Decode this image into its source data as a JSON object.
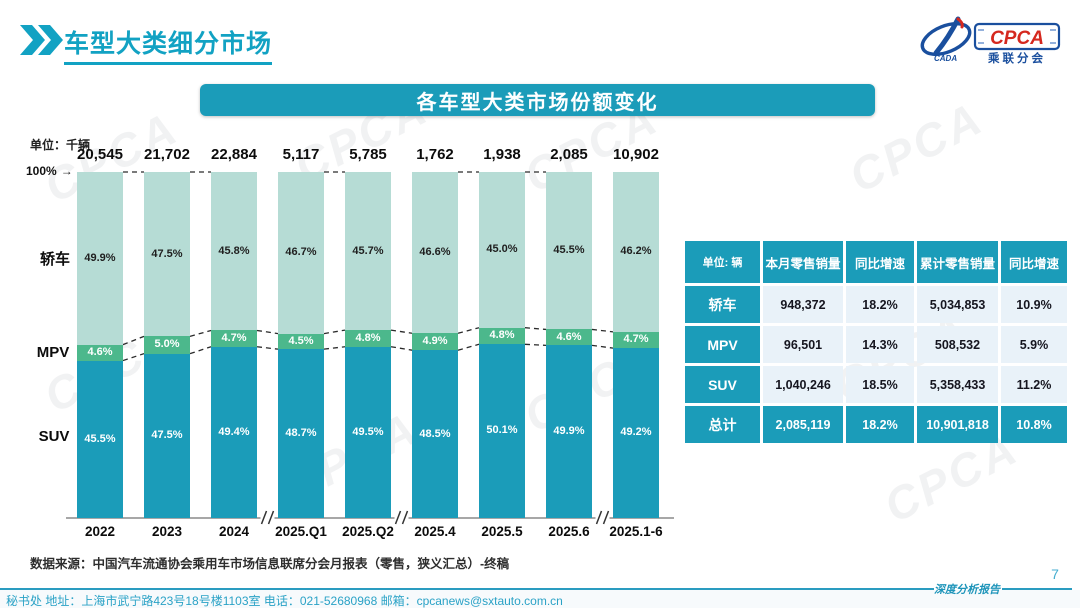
{
  "page": {
    "title": "车型大类细分市场",
    "page_number": "7",
    "footer_caption": "深度分析报告",
    "footer_address": "秘书处  地址：上海市武宁路423号18号楼1103室  电话：021-52680968   邮箱：cpcanews@sxtauto.com.cn",
    "data_source": "数据来源：中国汽车流通协会乘用车市场信息联席分会月报表（零售，狭义汇总）-终稿",
    "watermark_text": "CPCA"
  },
  "logo": {
    "cpca": "CPCA",
    "sub": "乘联分会",
    "cada": "CADA"
  },
  "colors": {
    "accent_teal": "#1b9cb9",
    "title_teal": "#12a2c3",
    "logo_blue": "#1a4f9e",
    "logo_red": "#d5281e"
  },
  "chart": {
    "banner_title": "各车型大类市场份额变化",
    "unit_label": "单位：千辆",
    "pct_100_label": "100%",
    "arrow": "→"
  },
  "chart_data": {
    "type": "bar",
    "stacked": true,
    "title": "各车型大类市场份额变化",
    "unit": "千辆",
    "categories": [
      "2022",
      "2023",
      "2024",
      "2025.Q1",
      "2025.Q2",
      "2025.4",
      "2025.5",
      "2025.6",
      "2025.1-6"
    ],
    "totals": [
      "20,545",
      "21,702",
      "22,884",
      "5,117",
      "5,785",
      "1,762",
      "1,938",
      "2,085",
      "10,902"
    ],
    "series": [
      {
        "name": "轿车",
        "values": [
          49.9,
          47.5,
          45.8,
          46.7,
          45.7,
          46.6,
          45.0,
          45.5,
          46.2
        ],
        "color": "#b6dcd5",
        "label_color": "#1f1f1f"
      },
      {
        "name": "MPV",
        "values": [
          4.6,
          5.0,
          4.7,
          4.5,
          4.8,
          4.9,
          4.8,
          4.6,
          4.7
        ],
        "color": "#4cb88c",
        "label_color": "#ffffff"
      },
      {
        "name": "SUV",
        "values": [
          45.5,
          47.5,
          49.4,
          48.7,
          49.5,
          48.5,
          50.1,
          49.9,
          49.2
        ],
        "color": "#1b9cb9",
        "label_color": "#ffffff"
      }
    ],
    "ylim": [
      0,
      100
    ],
    "axis_breaks_after": [
      2,
      4,
      7
    ],
    "legend_position": "left-of-bars"
  },
  "table": {
    "headers": [
      "单位: 辆",
      "本月零售销量",
      "同比增速",
      "累计零售销量",
      "同比增速"
    ],
    "rows": [
      {
        "label": "轿车",
        "cells": [
          "948,372",
          "18.2%",
          "5,034,853",
          "10.9%"
        ],
        "total": false
      },
      {
        "label": "MPV",
        "cells": [
          "96,501",
          "14.3%",
          "508,532",
          "5.9%"
        ],
        "total": false
      },
      {
        "label": "SUV",
        "cells": [
          "1,040,246",
          "18.5%",
          "5,358,433",
          "11.2%"
        ],
        "total": false
      },
      {
        "label": "总计",
        "cells": [
          "2,085,119",
          "18.2%",
          "10,901,818",
          "10.8%"
        ],
        "total": true
      }
    ]
  }
}
